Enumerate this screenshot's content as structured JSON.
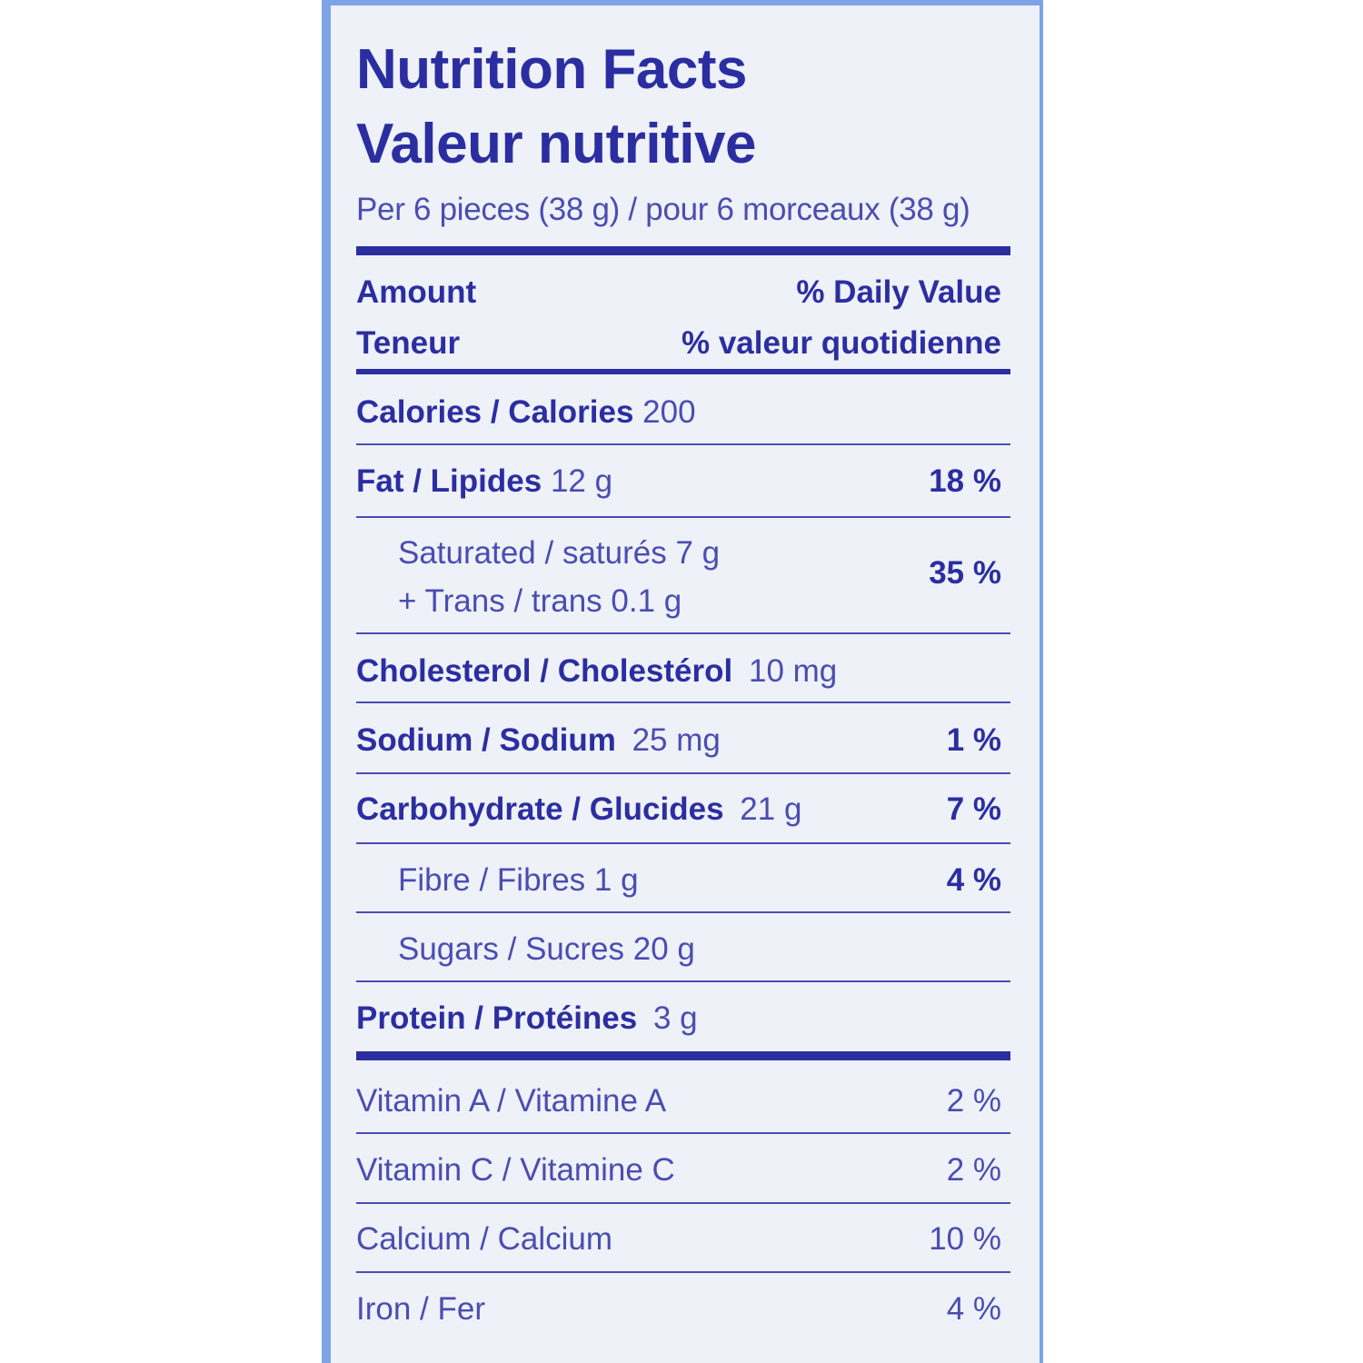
{
  "label": {
    "title_en": "Nutrition Facts",
    "title_fr": "Valeur nutritive",
    "serving": "Per 6 pieces (38 g) / pour 6 morceaux (38 g)",
    "header": {
      "amount_en": "Amount",
      "amount_fr": "Teneur",
      "dv_en": "% Daily Value",
      "dv_fr": "% valeur quotidienne"
    },
    "calories": {
      "label": "Calories / Calories",
      "amount": "200"
    },
    "fat": {
      "label": "Fat / Lipides",
      "amount": "12 g",
      "dv": "18 %"
    },
    "saturated": {
      "label": "Saturated / saturés 7 g",
      "trans": "+ Trans / trans 0.1 g",
      "dv": "35 %"
    },
    "cholesterol": {
      "label": "Cholesterol / Cholestérol",
      "amount": "10 mg"
    },
    "sodium": {
      "label": "Sodium / Sodium",
      "amount": "25 mg",
      "dv": "1 %"
    },
    "carbohydrate": {
      "label": "Carbohydrate / Glucides",
      "amount": "21 g",
      "dv": "7 %"
    },
    "fibre": {
      "label": "Fibre / Fibres 1 g",
      "dv": "4 %"
    },
    "sugars": {
      "label": "Sugars / Sucres 20 g"
    },
    "protein": {
      "label": "Protein / Protéines",
      "amount": "3 g"
    },
    "vitamin_a": {
      "label": "Vitamin A / Vitamine A",
      "dv": "2 %"
    },
    "vitamin_c": {
      "label": "Vitamin C / Vitamine C",
      "dv": "2 %"
    },
    "calcium": {
      "label": "Calcium / Calcium",
      "dv": "10 %"
    },
    "iron": {
      "label": "Iron / Fer",
      "dv": "4 %"
    }
  }
}
